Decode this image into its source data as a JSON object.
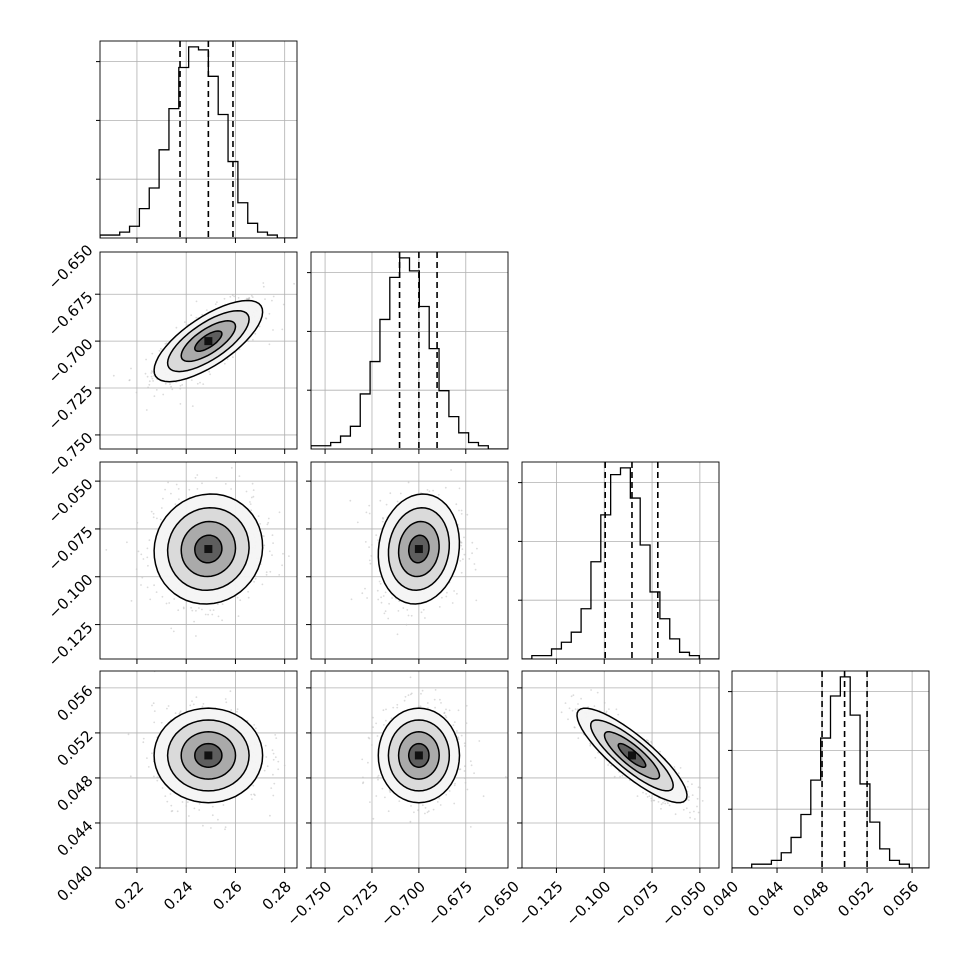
{
  "chart_data": {
    "type": "corner",
    "n_params": 4,
    "x_ticks": [
      [
        "0.22",
        "0.24",
        "0.26",
        "0.28"
      ],
      [
        "−0.750",
        "−0.725",
        "−0.700",
        "−0.675",
        "−0.650"
      ],
      [
        "−0.125",
        "−0.100",
        "−0.075",
        "−0.050"
      ],
      [
        "0.040",
        "0.044",
        "0.048",
        "0.052",
        "0.056"
      ]
    ],
    "y_ticks": [
      [],
      [
        "−0.650",
        "−0.675",
        "−0.700",
        "−0.725",
        "−0.750"
      ],
      [
        "−0.050",
        "−0.075",
        "−0.100",
        "−0.125"
      ],
      [
        "0.056",
        "0.052",
        "0.048",
        "0.044",
        "0.040"
      ]
    ],
    "params": [
      {
        "range": [
          0.205,
          0.285
        ],
        "ticks": [
          0.22,
          0.24,
          0.26,
          0.28
        ],
        "quantiles": [
          0.2375,
          0.249,
          0.259
        ],
        "mean": 0.249,
        "sd": 0.0105
      },
      {
        "range": [
          -0.7575,
          -0.6525
        ],
        "ticks": [
          -0.75,
          -0.725,
          -0.7,
          -0.675,
          -0.65
        ],
        "quantiles": [
          -0.7103,
          -0.7,
          -0.6903
        ],
        "mean": -0.7,
        "sd": 0.0103
      },
      {
        "range": [
          -0.143,
          -0.04
        ],
        "ticks": [
          -0.125,
          -0.1,
          -0.075,
          -0.05
        ],
        "quantiles": [
          -0.0995,
          -0.0855,
          -0.072
        ],
        "mean": -0.0855,
        "sd": 0.0137
      },
      {
        "range": [
          0.04,
          0.0575
        ],
        "ticks": [
          0.04,
          0.044,
          0.048,
          0.052,
          0.056
        ],
        "quantiles": [
          0.048,
          0.05,
          0.052
        ],
        "mean": 0.05,
        "sd": 0.002
      }
    ],
    "correlations": [
      [
        0,
        1,
        0.72
      ],
      [
        0,
        2,
        0.05
      ],
      [
        1,
        2,
        0.1
      ],
      [
        0,
        3,
        0.0
      ],
      [
        1,
        3,
        0.0
      ],
      [
        2,
        3,
        -0.85
      ]
    ],
    "histograms": [
      [
        1,
        1,
        2,
        4,
        10,
        17,
        30,
        44,
        58,
        65,
        64,
        55,
        42,
        26,
        12,
        5,
        2,
        1,
        0,
        0
      ],
      [
        1,
        1,
        2,
        4,
        7,
        17,
        27,
        40,
        53,
        59,
        55,
        44,
        31,
        18,
        10,
        5,
        2,
        1,
        0,
        0
      ],
      [
        0,
        1,
        1,
        3,
        5,
        8,
        15,
        29,
        43,
        55,
        57,
        48,
        34,
        20,
        12,
        6,
        2,
        1,
        0,
        0
      ],
      [
        0,
        0,
        1,
        1,
        2,
        4,
        8,
        14,
        23,
        34,
        45,
        50,
        40,
        22,
        12,
        5,
        2,
        1,
        0,
        0
      ]
    ],
    "contour_levels_sigma": [
      0.5,
      1.0,
      1.5,
      2.0
    ],
    "grid": true,
    "quantile_line_style": "dashed",
    "colors": {
      "line": "#000000",
      "grid": "#b0b0b0",
      "points": "#bdbdbd"
    }
  }
}
